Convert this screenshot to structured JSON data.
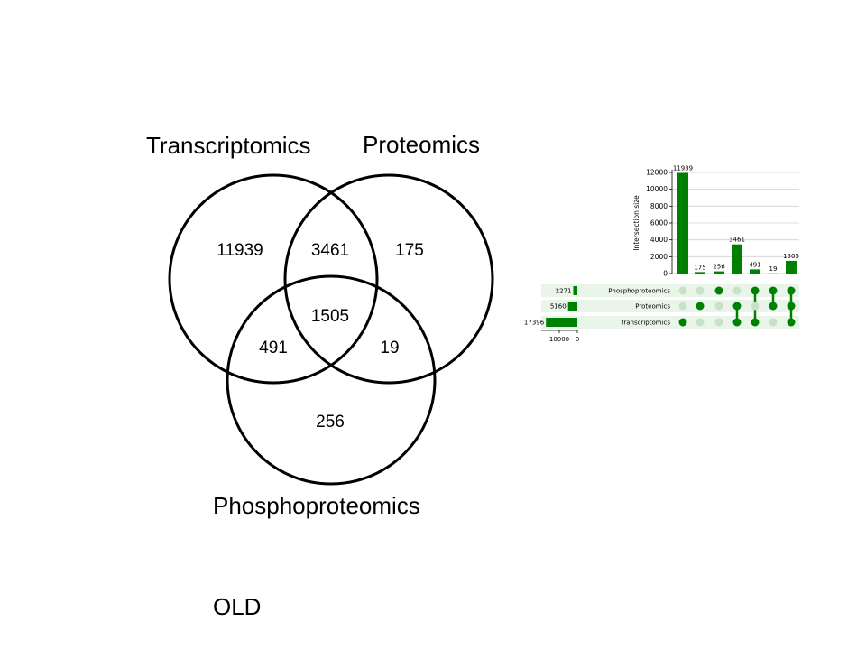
{
  "venn": {
    "sets": [
      {
        "name": "Transcriptomics"
      },
      {
        "name": "Proteomics"
      },
      {
        "name": "Phosphoproteomics"
      }
    ],
    "regions": {
      "transcriptomics_only": "11939",
      "transcriptomics_proteomics": "3461",
      "proteomics_only": "175",
      "all_three": "1505",
      "transcriptomics_phospho": "491",
      "proteomics_phospho": "19",
      "phospho_only": "256"
    }
  },
  "footer_label": "OLD",
  "chart_data": {
    "type": "bar",
    "ylabel": "Intersection size",
    "ylim": [
      0,
      12000
    ],
    "yticks": [
      0,
      2000,
      4000,
      6000,
      8000,
      10000,
      12000
    ],
    "grid": true,
    "color": "#008000",
    "set_names": [
      "Phosphoproteomics",
      "Proteomics",
      "Transcriptomics"
    ],
    "set_sizes": [
      2271,
      5160,
      17396
    ],
    "set_size_ticks": [
      10000,
      0
    ],
    "intersections": [
      {
        "sets": [
          "Transcriptomics"
        ],
        "value": 11939
      },
      {
        "sets": [
          "Proteomics"
        ],
        "value": 175
      },
      {
        "sets": [
          "Phosphoproteomics"
        ],
        "value": 256
      },
      {
        "sets": [
          "Transcriptomics",
          "Proteomics"
        ],
        "value": 3461
      },
      {
        "sets": [
          "Transcriptomics",
          "Phosphoproteomics"
        ],
        "value": 491
      },
      {
        "sets": [
          "Proteomics",
          "Phosphoproteomics"
        ],
        "value": 19
      },
      {
        "sets": [
          "Transcriptomics",
          "Proteomics",
          "Phosphoproteomics"
        ],
        "value": 1505
      }
    ]
  }
}
